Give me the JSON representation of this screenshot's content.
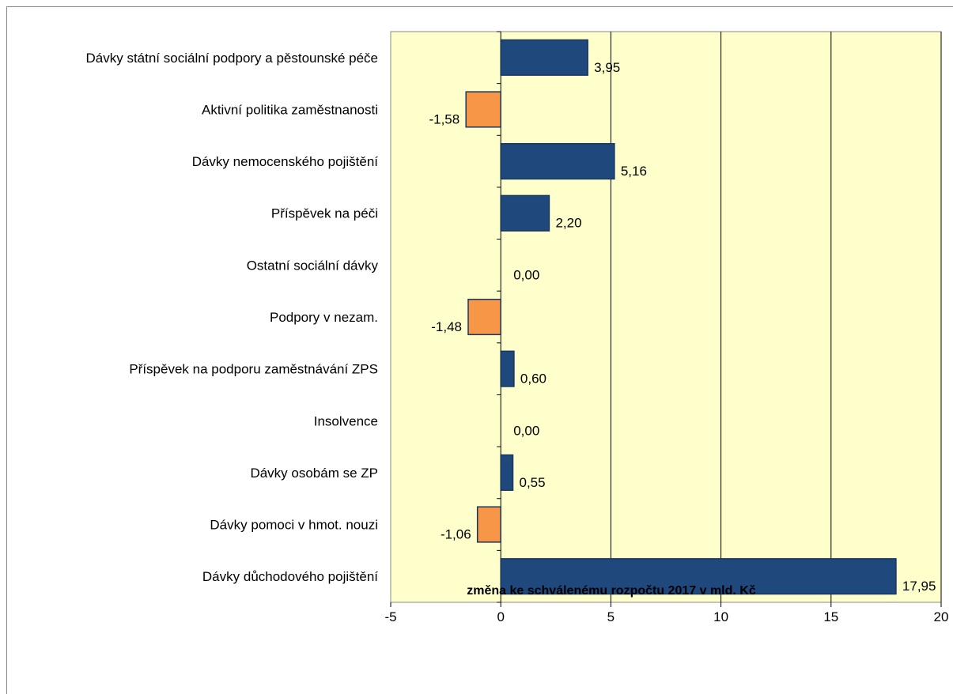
{
  "chart_data": {
    "type": "bar",
    "orientation": "horizontal",
    "categories": [
      "Dávky státní sociální podpory a pěstounské péče",
      "Aktivní politika zaměstnanosti",
      "Dávky nemocenského pojištění",
      "Příspěvek na péči",
      "Ostatní sociální dávky",
      "Podpory v nezam.",
      "Příspěvek na podporu zaměstnávání ZPS",
      "Insolvence",
      "Dávky osobám se ZP",
      "Dávky pomoci v hmot. nouzi",
      "Dávky důchodového pojištění"
    ],
    "values": [
      3.95,
      -1.58,
      5.16,
      2.2,
      0.0,
      -1.48,
      0.6,
      0.0,
      0.55,
      -1.06,
      17.95
    ],
    "data_labels": [
      "3,95",
      "-1,58",
      "5,16",
      "2,20",
      "0,00",
      "-1,48",
      "0,60",
      "0,00",
      "0,55",
      "-1,06",
      "17,95"
    ],
    "xlabel": "změna ke schválenému rozpočtu 2017 v mld. Kč",
    "xlim": [
      -5,
      20
    ],
    "xticks": [
      -5,
      0,
      5,
      10,
      15,
      20
    ],
    "xtick_labels": [
      "-5",
      "0",
      "5",
      "10",
      "15",
      "20"
    ],
    "grid": "vertical lines",
    "colors": {
      "positive": "#1f497d",
      "negative": "#f79646",
      "plot_background": "#ffffcc",
      "bar_border": "#17375e"
    }
  }
}
